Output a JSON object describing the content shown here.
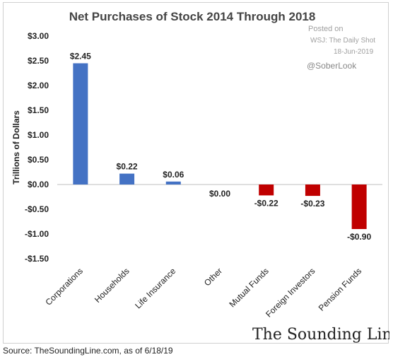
{
  "chart_data": {
    "type": "bar",
    "title": "Net Purchases of Stock 2014 Through 2018",
    "ylabel": "Trillions of Dollars",
    "xlabel": "",
    "ylim": [
      -1.5,
      3.0
    ],
    "yticks": [
      3.0,
      2.5,
      2.0,
      1.5,
      1.0,
      0.5,
      0.0,
      -0.5,
      -1.0,
      -1.5
    ],
    "ytick_labels": [
      "$3.00",
      "$2.50",
      "$2.00",
      "$1.50",
      "$1.00",
      "$0.50",
      "$0.00",
      "-$0.50",
      "-$1.00",
      "-$1.50"
    ],
    "grid": false,
    "categories": [
      "Corporations",
      "Households",
      "Life Insurance",
      "Other",
      "Mutual Funds",
      "Foreign Investors",
      "Pension Funds"
    ],
    "values": [
      2.45,
      0.22,
      0.06,
      0.0,
      -0.22,
      -0.23,
      -0.9
    ],
    "data_labels": [
      "$2.45",
      "$0.22",
      "$0.06",
      "$0.00",
      "-$0.22",
      "-$0.23",
      "-$0.90"
    ],
    "colors": {
      "positive": "#4472c4",
      "negative": "#c00000",
      "axis": "#bfbfbf"
    }
  },
  "annotations": {
    "posted_on": "Posted on",
    "publisher": "WSJ: The Daily Shot",
    "date": "18-Jun-2019",
    "handle": "@SoberLook",
    "brand": "The Sounding Line.com"
  },
  "source": "Source: TheSoundingLine.com, as of 6/18/19"
}
